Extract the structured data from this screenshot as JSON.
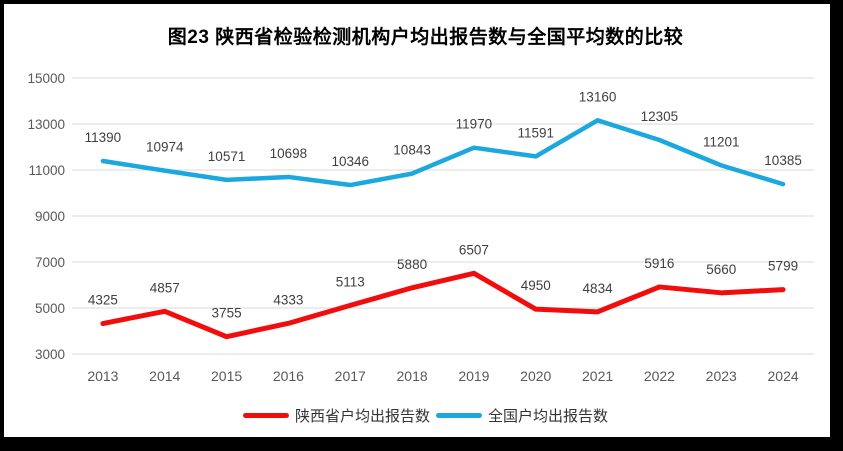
{
  "page": {
    "title": "图23 陕西省检验检测机构户均出报告数与全国平均数的比较"
  },
  "colors": {
    "shaanxi_red": "#f20d0d",
    "national_blue": "#1ba8df",
    "gridline": "#d9d9d9",
    "axis_text": "#595959",
    "data_label_text": "#3f3f3f",
    "frame_border": "#000000",
    "title_text": "#000000"
  },
  "legend": {
    "items": [
      {
        "label": "陕西省户均出报告数",
        "color": "#f20d0d"
      },
      {
        "label": "全国户均出报告数",
        "color": "#1ba8df"
      }
    ]
  },
  "chart_data": {
    "type": "line",
    "title": "图23 陕西省检验检测机构户均出报告数与全国平均数的比较",
    "categories": [
      "2013",
      "2014",
      "2015",
      "2016",
      "2017",
      "2018",
      "2019",
      "2020",
      "2021",
      "2022",
      "2023",
      "2024"
    ],
    "series": [
      {
        "name": "陕西省户均出报告数",
        "color": "#f20d0d",
        "values": [
          4325,
          4857,
          3755,
          4333,
          5113,
          5880,
          6507,
          4950,
          4834,
          5916,
          5660,
          5799
        ]
      },
      {
        "name": "全国户均出报告数",
        "color": "#1ba8df",
        "values": [
          11390,
          10974,
          10571,
          10698,
          10346,
          10843,
          11970,
          11591,
          13160,
          12305,
          11201,
          10385
        ]
      }
    ],
    "ylim": [
      3000,
      15000
    ],
    "yticks": [
      3000,
      5000,
      7000,
      9000,
      11000,
      13000,
      15000
    ],
    "xlabel": "",
    "ylabel": "",
    "grid": "horizontal",
    "legend_position": "bottom",
    "data_labels": true
  }
}
